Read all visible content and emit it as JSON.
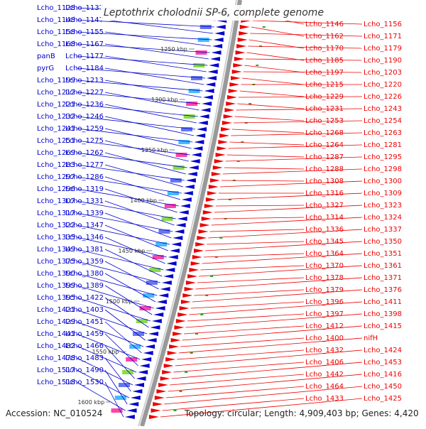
{
  "title": "Leptothrix cholodnii SP-6, complete genome",
  "accession": "Accession: NC_010524",
  "topology": "Topology: circular; Length: 4,909,403 bp; Genes: 4,420",
  "colors": {
    "reverse_strand": "#0000cc",
    "forward_strand": "#ee0000",
    "backbone": "#888888",
    "gc_marker": "#22aa22",
    "tick_label": "#333333"
  },
  "scale_labels": [
    "1250 kbp",
    "1300 kbp",
    "1350 kbp",
    "1400 kbp",
    "1450 kbp",
    "1500 kbp",
    "1550 kbp",
    "1600 kbp"
  ],
  "left_labels": [
    "Lcho_1128",
    "Lcho_1137",
    "Lcho_1148",
    "Lcho_1147",
    "Lcho_1158",
    "Lcho_1155",
    "Lcho_1168",
    "Lcho_1167",
    "panB",
    "Lcho_1177",
    "pyrG",
    "Lcho_1184",
    "Lcho_1199",
    "Lcho_1213",
    "Lcho_1212",
    "Lcho_1227",
    "Lcho_1221",
    "Lcho_1236",
    "Lcho_1232",
    "Lcho_1246",
    "Lcho_1241",
    "Lcho_1259",
    "Lcho_1251",
    "Lcho_1275",
    "Lcho_1269",
    "Lcho_1262",
    "Lcho_1283",
    "Lcho_1277",
    "Lcho_1297",
    "Lcho_1286",
    "Lcho_1296",
    "Lcho_1319",
    "Lcho_1307",
    "Lcho_1331",
    "Lcho_1317",
    "Lcho_1339",
    "Lcho_1322",
    "Lcho_1347",
    "Lcho_1335",
    "Lcho_1346",
    "Lcho_1349",
    "Lcho_1381",
    "Lcho_1375",
    "Lcho_1359",
    "Lcho_1390",
    "Lcho_1380",
    "Lcho_1399",
    "Lcho_1389",
    "Lcho_1395",
    "Lcho_1422",
    "Lcho_1421",
    "Lcho_1403",
    "Lcho_1429",
    "Lcho_1451",
    "Lcho_1441",
    "Lcho_1459",
    "Lcho_1482",
    "Lcho_1466",
    "Lcho_1478",
    "Lcho_1483",
    "Lcho_1517",
    "Lcho_1490",
    "Lcho_1518",
    "Lcho_1530"
  ],
  "right_labels": [
    "Lcho_1146",
    "Lcho_1156",
    "Lcho_1162",
    "Lcho_1171",
    "Lcho_1170",
    "Lcho_1179",
    "Lcho_1185",
    "Lcho_1190",
    "Lcho_1197",
    "Lcho_1203",
    "Lcho_1215",
    "Lcho_1220",
    "Lcho_1229",
    "Lcho_1226",
    "Lcho_1231",
    "Lcho_1243",
    "Lcho_1253",
    "Lcho_1254",
    "Lcho_1268",
    "Lcho_1263",
    "Lcho_1264",
    "Lcho_1281",
    "Lcho_1287",
    "Lcho_1295",
    "Lcho_1288",
    "Lcho_1298",
    "Lcho_1308",
    "Lcho_1300",
    "Lcho_1316",
    "Lcho_1309",
    "Lcho_1327",
    "Lcho_1323",
    "Lcho_1314",
    "Lcho_1324",
    "Lcho_1336",
    "Lcho_1337",
    "Lcho_1345",
    "Lcho_1350",
    "Lcho_1364",
    "Lcho_1351",
    "Lcho_1370",
    "Lcho_1361",
    "Lcho_1378",
    "Lcho_1371",
    "Lcho_1379",
    "Lcho_1376",
    "Lcho_1396",
    "Lcho_1411",
    "Lcho_1397",
    "Lcho_1398",
    "Lcho_1412",
    "Lcho_1415",
    "Lcho_1400",
    "nifH",
    "Lcho_1432",
    "Lcho_1424",
    "Lcho_1406",
    "Lcho_1453",
    "Lcho_1442",
    "Lcho_1416",
    "Lcho_1464",
    "Lcho_1450",
    "Lcho_1433",
    "Lcho_1425"
  ]
}
